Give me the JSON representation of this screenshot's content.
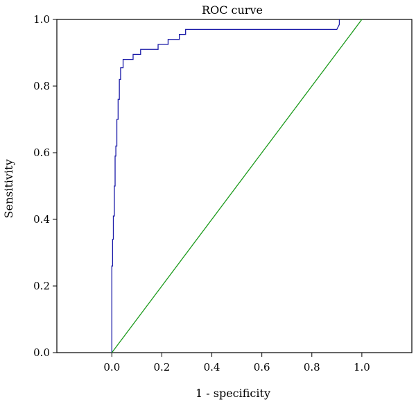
{
  "chart_data": {
    "type": "line",
    "title": "ROC curve",
    "xlabel": "1 - specificity",
    "ylabel": "Sensitivity",
    "xlim": [
      -0.22,
      1.2
    ],
    "ylim": [
      0,
      1.0
    ],
    "x_ticks": [
      0.0,
      0.2,
      0.4,
      0.6,
      0.8,
      1.0
    ],
    "y_ticks": [
      0.0,
      0.2,
      0.4,
      0.6,
      0.8,
      1.0
    ],
    "x_tick_labels": [
      "0.0",
      "0.2",
      "0.4",
      "0.6",
      "0.8",
      "1.0"
    ],
    "y_tick_labels": [
      "0.0",
      "0.2",
      "0.4",
      "0.6",
      "0.8",
      "1.0"
    ],
    "grid": false,
    "series": [
      {
        "color": "#1a1aa8",
        "x": [
          0.0,
          0.0,
          0.003,
          0.003,
          0.006,
          0.006,
          0.01,
          0.01,
          0.013,
          0.013,
          0.016,
          0.016,
          0.02,
          0.02,
          0.025,
          0.025,
          0.03,
          0.03,
          0.035,
          0.035,
          0.045,
          0.045,
          0.085,
          0.085,
          0.115,
          0.115,
          0.185,
          0.185,
          0.225,
          0.225,
          0.27,
          0.27,
          0.295,
          0.295,
          0.9,
          0.91,
          0.91
        ],
        "y": [
          0.0,
          0.26,
          0.26,
          0.34,
          0.34,
          0.41,
          0.41,
          0.5,
          0.5,
          0.59,
          0.59,
          0.62,
          0.62,
          0.7,
          0.7,
          0.76,
          0.76,
          0.82,
          0.82,
          0.855,
          0.855,
          0.88,
          0.88,
          0.895,
          0.895,
          0.91,
          0.91,
          0.925,
          0.925,
          0.94,
          0.94,
          0.955,
          0.955,
          0.97,
          0.97,
          0.985,
          1.0
        ]
      },
      {
        "color": "#1a9a1a",
        "x": [
          0.0,
          1.0
        ],
        "y": [
          0.0,
          1.0
        ]
      }
    ]
  }
}
